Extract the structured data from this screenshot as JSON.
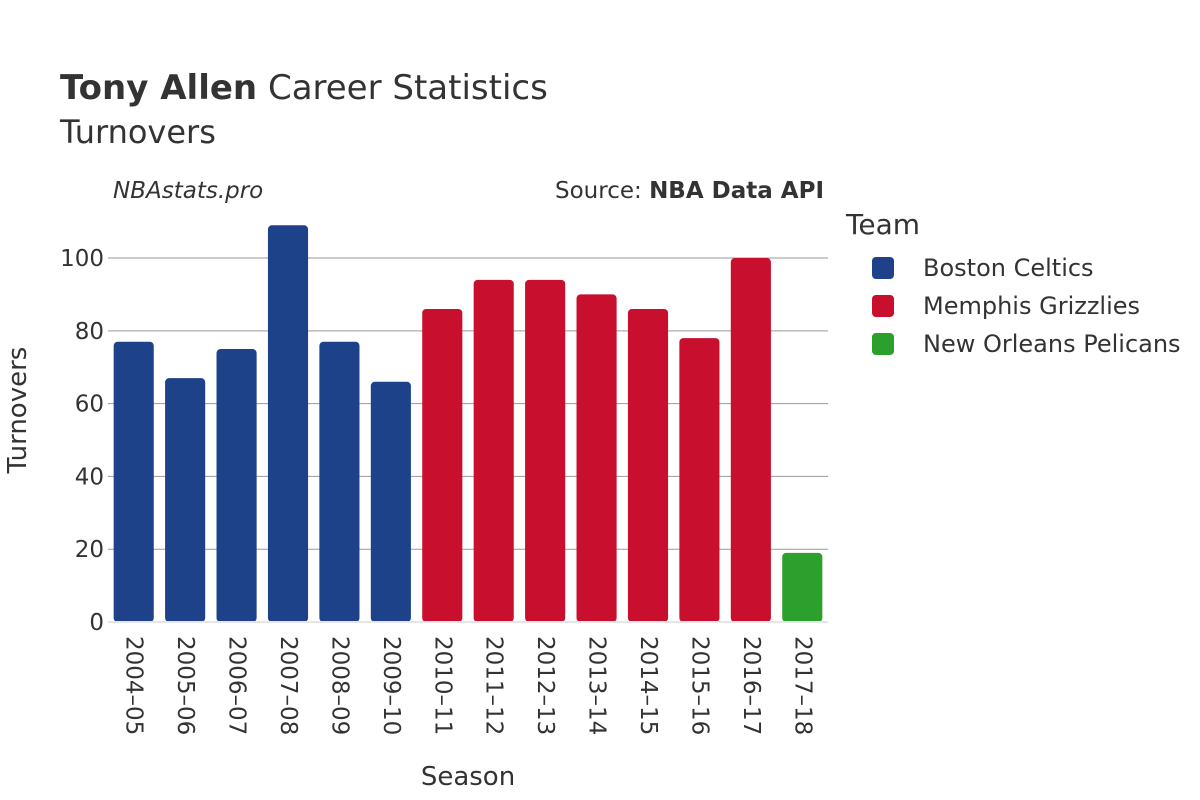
{
  "header": {
    "title_bold": "Tony Allen",
    "title_rest": "Career Statistics",
    "subtitle": "Turnovers",
    "watermark": "NBAstats.pro",
    "source_prefix": "Source: ",
    "source_bold": "NBA Data API"
  },
  "chart_data": {
    "type": "bar",
    "title": "Tony Allen Career Statistics",
    "subtitle": "Turnovers",
    "xlabel": "Season",
    "ylabel": "Turnovers",
    "ylim": [
      0,
      111
    ],
    "yticks": [
      0,
      20,
      40,
      60,
      80,
      100
    ],
    "grid": true,
    "legend_title": "Team",
    "legend_position": "right",
    "categories": [
      "2004–05",
      "2005–06",
      "2006–07",
      "2007–08",
      "2008–09",
      "2009–10",
      "2010–11",
      "2011–12",
      "2012–13",
      "2013–14",
      "2014–15",
      "2015–16",
      "2016–17",
      "2017–18"
    ],
    "values": [
      77,
      67,
      75,
      109,
      77,
      66,
      86,
      94,
      94,
      90,
      86,
      78,
      100,
      19
    ],
    "teams": [
      "Boston Celtics",
      "Boston Celtics",
      "Boston Celtics",
      "Boston Celtics",
      "Boston Celtics",
      "Boston Celtics",
      "Memphis Grizzlies",
      "Memphis Grizzlies",
      "Memphis Grizzlies",
      "Memphis Grizzlies",
      "Memphis Grizzlies",
      "Memphis Grizzlies",
      "Memphis Grizzlies",
      "New Orleans Pelicans"
    ],
    "series": [
      {
        "name": "Boston Celtics",
        "color": "#1d428a"
      },
      {
        "name": "Memphis Grizzlies",
        "color": "#c8102e"
      },
      {
        "name": "New Orleans Pelicans",
        "color": "#2ca02c"
      }
    ]
  }
}
